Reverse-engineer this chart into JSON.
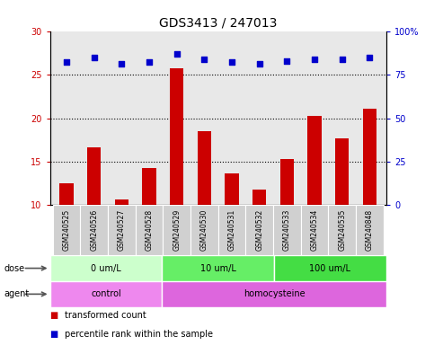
{
  "title": "GDS3413 / 247013",
  "samples": [
    "GSM240525",
    "GSM240526",
    "GSM240527",
    "GSM240528",
    "GSM240529",
    "GSM240530",
    "GSM240531",
    "GSM240532",
    "GSM240533",
    "GSM240534",
    "GSM240535",
    "GSM240848"
  ],
  "transformed_count": [
    12.5,
    16.7,
    10.7,
    14.3,
    25.7,
    18.5,
    13.7,
    11.8,
    15.3,
    20.3,
    17.7,
    21.1
  ],
  "percentile_rank": [
    82,
    85,
    81,
    82,
    87,
    84,
    82,
    81,
    83,
    84,
    84,
    85
  ],
  "bar_color": "#cc0000",
  "dot_color": "#0000cc",
  "ylim_left": [
    10,
    30
  ],
  "ylim_right": [
    0,
    100
  ],
  "yticks_left": [
    10,
    15,
    20,
    25,
    30
  ],
  "yticks_right": [
    0,
    25,
    50,
    75,
    100
  ],
  "ytick_labels_right": [
    "0",
    "25",
    "50",
    "75",
    "100%"
  ],
  "grid_lines": [
    15,
    20,
    25
  ],
  "dose_groups": [
    {
      "label": "0 um/L",
      "start": 0,
      "end": 4,
      "color": "#ccffcc"
    },
    {
      "label": "10 um/L",
      "start": 4,
      "end": 8,
      "color": "#66ee66"
    },
    {
      "label": "100 um/L",
      "start": 8,
      "end": 12,
      "color": "#44dd44"
    }
  ],
  "agent_groups": [
    {
      "label": "control",
      "start": 0,
      "end": 4,
      "color": "#ee88ee"
    },
    {
      "label": "homocysteine",
      "start": 4,
      "end": 12,
      "color": "#dd66dd"
    }
  ],
  "dose_label": "dose",
  "agent_label": "agent",
  "legend_bar_label": "transformed count",
  "legend_dot_label": "percentile rank within the sample",
  "background_color": "#ffffff",
  "plot_bg_color": "#e8e8e8",
  "xtick_bg_color": "#d0d0d0",
  "title_fontsize": 10,
  "tick_fontsize": 7,
  "sample_fontsize": 5.5,
  "label_fontsize": 7,
  "legend_fontsize": 7
}
